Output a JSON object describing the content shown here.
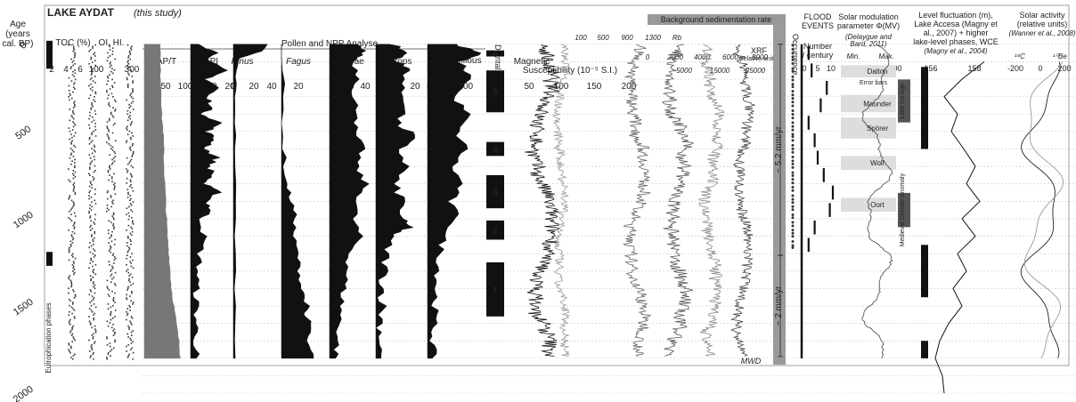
{
  "chart_data": {
    "type": "multi-panel-stratigraphic",
    "title": "LAKE AYDAT",
    "title_note": "(this study)",
    "age_axis": {
      "label_lines": [
        "Age",
        "(years",
        "cal. BP)"
      ],
      "ticks": [
        0,
        500,
        1000,
        1500,
        2000
      ],
      "lim": [
        -60,
        2030
      ],
      "gridlines": [
        0,
        100,
        200,
        300,
        400,
        500,
        600,
        700,
        800,
        900,
        1000,
        1100,
        1200,
        1300,
        1400,
        1500,
        1600,
        1700,
        1800,
        1900,
        2000
      ]
    },
    "eutrophication": {
      "label": "Eutrophication phases",
      "blocks": [
        [
          -20,
          140
        ],
        [
          1190,
          1270
        ]
      ]
    },
    "panels": [
      {
        "id": "toc",
        "label": "TOC (%)",
        "ticks": [
          "2",
          "4",
          "6"
        ]
      },
      {
        "id": "oi_hi",
        "label": "OI, HI.",
        "ticks": [
          "100",
          "300"
        ]
      },
      {
        "id": "pollen_group",
        "label": "Pollen and NPP Analyse"
      },
      {
        "id": "ap_t",
        "label": "AP/T",
        "ticks": [
          "0",
          "50",
          "100"
        ],
        "profile": [
          [
            0,
            40
          ],
          [
            100,
            38
          ],
          [
            200,
            40
          ],
          [
            300,
            42
          ],
          [
            400,
            42
          ],
          [
            500,
            46
          ],
          [
            600,
            47
          ],
          [
            700,
            48
          ],
          [
            800,
            50
          ],
          [
            900,
            52
          ],
          [
            1000,
            54
          ],
          [
            1100,
            56
          ],
          [
            1200,
            60
          ],
          [
            1300,
            63
          ],
          [
            1400,
            66
          ],
          [
            1500,
            72
          ],
          [
            1600,
            78
          ],
          [
            1700,
            84
          ],
          [
            1800,
            88
          ]
        ]
      },
      {
        "id": "api",
        "label": "API",
        "ticks": [
          "0",
          "10",
          "20"
        ],
        "profile": [
          [
            0,
            6
          ],
          [
            50,
            14
          ],
          [
            100,
            10
          ],
          [
            150,
            18
          ],
          [
            200,
            9
          ],
          [
            250,
            15
          ],
          [
            300,
            8
          ],
          [
            350,
            12
          ],
          [
            400,
            7
          ],
          [
            450,
            16
          ],
          [
            500,
            9
          ],
          [
            550,
            13
          ],
          [
            600,
            8
          ],
          [
            650,
            14
          ],
          [
            700,
            10
          ],
          [
            750,
            12
          ],
          [
            800,
            7
          ],
          [
            850,
            15
          ],
          [
            900,
            9
          ],
          [
            950,
            11
          ],
          [
            1000,
            6
          ],
          [
            1100,
            7
          ],
          [
            1200,
            5
          ],
          [
            1300,
            4
          ],
          [
            1400,
            3
          ],
          [
            1500,
            3
          ],
          [
            1600,
            3
          ],
          [
            1700,
            3
          ],
          [
            1800,
            3
          ]
        ]
      },
      {
        "id": "pinus",
        "label": "Pinus",
        "italic": true,
        "ticks": [
          "0",
          "20",
          "40"
        ],
        "profile": [
          [
            0,
            36
          ],
          [
            40,
            30
          ],
          [
            80,
            6
          ],
          [
            150,
            3
          ],
          [
            300,
            2
          ],
          [
            600,
            2
          ],
          [
            1000,
            2
          ],
          [
            1400,
            2
          ],
          [
            1800,
            2
          ]
        ]
      },
      {
        "id": "fagus",
        "label": "Fagus",
        "italic": true,
        "ticks": [
          "20"
        ],
        "profile": [
          [
            0,
            1
          ],
          [
            300,
            1
          ],
          [
            600,
            2
          ],
          [
            800,
            5
          ],
          [
            900,
            10
          ],
          [
            1000,
            14
          ],
          [
            1100,
            12
          ],
          [
            1200,
            16
          ],
          [
            1300,
            18
          ],
          [
            1400,
            20
          ],
          [
            1500,
            26
          ],
          [
            1550,
            22
          ],
          [
            1600,
            30
          ],
          [
            1700,
            24
          ],
          [
            1800,
            32
          ]
        ]
      },
      {
        "id": "poaceae",
        "label": "Poaceae",
        "ticks": [
          "0",
          "20",
          "40"
        ],
        "profile": [
          [
            0,
            30
          ],
          [
            50,
            34
          ],
          [
            100,
            24
          ],
          [
            200,
            30
          ],
          [
            300,
            22
          ],
          [
            400,
            30
          ],
          [
            500,
            24
          ],
          [
            600,
            33
          ],
          [
            700,
            26
          ],
          [
            800,
            36
          ],
          [
            900,
            28
          ],
          [
            1000,
            24
          ],
          [
            1100,
            30
          ],
          [
            1200,
            20
          ],
          [
            1300,
            18
          ],
          [
            1400,
            14
          ],
          [
            1500,
            12
          ],
          [
            1600,
            10
          ],
          [
            1700,
            8
          ],
          [
            1800,
            6
          ]
        ]
      },
      {
        "id": "crops",
        "label": "Crops",
        "ticks": [
          "0",
          "10",
          "20"
        ],
        "profile": [
          [
            0,
            10
          ],
          [
            50,
            18
          ],
          [
            100,
            12
          ],
          [
            150,
            20
          ],
          [
            250,
            14
          ],
          [
            350,
            19
          ],
          [
            450,
            12
          ],
          [
            520,
            22
          ],
          [
            600,
            14
          ],
          [
            700,
            18
          ],
          [
            800,
            10
          ],
          [
            900,
            16
          ],
          [
            1000,
            14
          ],
          [
            1050,
            20
          ],
          [
            1100,
            8
          ],
          [
            1200,
            6
          ],
          [
            1300,
            5
          ],
          [
            1400,
            4
          ],
          [
            1500,
            4
          ],
          [
            1600,
            3
          ],
          [
            1700,
            3
          ],
          [
            1800,
            3
          ]
        ]
      },
      {
        "id": "coprophilous",
        "label": "Coprophilous fungi",
        "ticks": [
          "0",
          "1000"
        ],
        "profile": [
          [
            0,
            500
          ],
          [
            50,
            1000
          ],
          [
            100,
            600
          ],
          [
            200,
            820
          ],
          [
            300,
            480
          ],
          [
            400,
            760
          ],
          [
            500,
            540
          ],
          [
            600,
            720
          ],
          [
            700,
            460
          ],
          [
            800,
            640
          ],
          [
            900,
            420
          ],
          [
            1000,
            560
          ],
          [
            1100,
            300
          ],
          [
            1200,
            240
          ],
          [
            1300,
            200
          ],
          [
            1400,
            160
          ],
          [
            1500,
            140
          ],
          [
            1600,
            120
          ],
          [
            1700,
            100
          ],
          [
            1800,
            90
          ]
        ]
      },
      {
        "id": "detrital",
        "label": "Detrital phases",
        "phases": [
          {
            "name": "6",
            "start": 35,
            "end": 70
          },
          {
            "name": "5",
            "start": 150,
            "end": 390
          },
          {
            "name": "4",
            "start": 560,
            "end": 640
          },
          {
            "name": "3",
            "start": 750,
            "end": 940
          },
          {
            "name": "2",
            "start": 1010,
            "end": 1120
          },
          {
            "name": "1",
            "start": 1250,
            "end": 1560
          }
        ]
      },
      {
        "id": "magsus",
        "label": "Magnetic Susceptibility (10⁻⁵ S.I.)",
        "ticks": [
          "50",
          "100",
          "150",
          "200"
        ]
      },
      {
        "id": "xrf",
        "label": "XRF",
        "sublabel": "(relative units)",
        "scales": [
          {
            "element": "Rb",
            "ticks": [
              "100",
              "500",
              "900",
              "1300"
            ]
          },
          {
            "element": "K",
            "ticks": [
              "0",
              "2000",
              "4000",
              "6000",
              "8000"
            ]
          },
          {
            "element": "Ti",
            "ticks": [
              "5000",
              "15000",
              "25000"
            ]
          }
        ]
      },
      {
        "id": "bsr",
        "label": "Background sedimentation rate",
        "rates": [
          {
            "label": "~ 5.2 mm/yr",
            "start": 0,
            "end": 1210
          },
          {
            "label": "~ 2 mm/yr",
            "start": 1210,
            "end": 1790
          }
        ],
        "note": "MWD"
      },
      {
        "id": "flood_occ",
        "label": "Occurrence"
      },
      {
        "id": "flood",
        "label": "FLOOD EVENTS",
        "sublabel": "Number / century",
        "ticks": [
          "0",
          "5",
          "10"
        ],
        "steps": [
          [
            0,
            2
          ],
          [
            100,
            3
          ],
          [
            200,
            8
          ],
          [
            300,
            6
          ],
          [
            400,
            2
          ],
          [
            500,
            4
          ],
          [
            600,
            5
          ],
          [
            700,
            7
          ],
          [
            800,
            10
          ],
          [
            900,
            9
          ],
          [
            1000,
            4
          ],
          [
            1100,
            2
          ],
          [
            1200,
            0
          ],
          [
            1400,
            0
          ],
          [
            1600,
            0
          ],
          [
            1800,
            0
          ]
        ]
      },
      {
        "id": "solar_mod",
        "label": "Solar modulation parameter Φ(MV)",
        "source": "(Delaygue and Bard, 2011)",
        "ticks": [
          "0",
          "400",
          "800"
        ],
        "range_labels": [
          "Min.",
          "Max."
        ],
        "error_bars_label": "Error bars",
        "minima": [
          {
            "name": "Dalton",
            "start": 120,
            "end": 190
          },
          {
            "name": "Maunder",
            "start": 290,
            "end": 390
          },
          {
            "name": "Spörer",
            "start": 420,
            "end": 540
          },
          {
            "name": "Wolf",
            "start": 640,
            "end": 720
          },
          {
            "name": "Oort",
            "start": 880,
            "end": 960
          }
        ],
        "climate_periods": [
          {
            "name": "Little Ice Age",
            "start": 100,
            "end": 550
          },
          {
            "name": "Medieval Climate Anomaly",
            "start": 750,
            "end": 1150
          }
        ]
      },
      {
        "id": "lake_level",
        "label": "Level fluctuation (m), Lake Accesa",
        "source": "(Magny et al., 2007) + higher lake-level phases, WCE (Magny et al., 2004)",
        "ticks": [
          "156",
          "158"
        ],
        "high_phases": [
          [
            130,
            600
          ],
          [
            1150,
            1450
          ],
          [
            1700,
            1800
          ]
        ]
      },
      {
        "id": "solar_activity",
        "label": "Solar activity",
        "sublabel": "(relative units)",
        "source": "(Wanner et al., 2008)",
        "ticks": [
          "-200",
          "0",
          "200"
        ],
        "series": [
          {
            "name": "¹⁴C"
          },
          {
            "name": "¹⁰Be"
          }
        ]
      }
    ]
  }
}
